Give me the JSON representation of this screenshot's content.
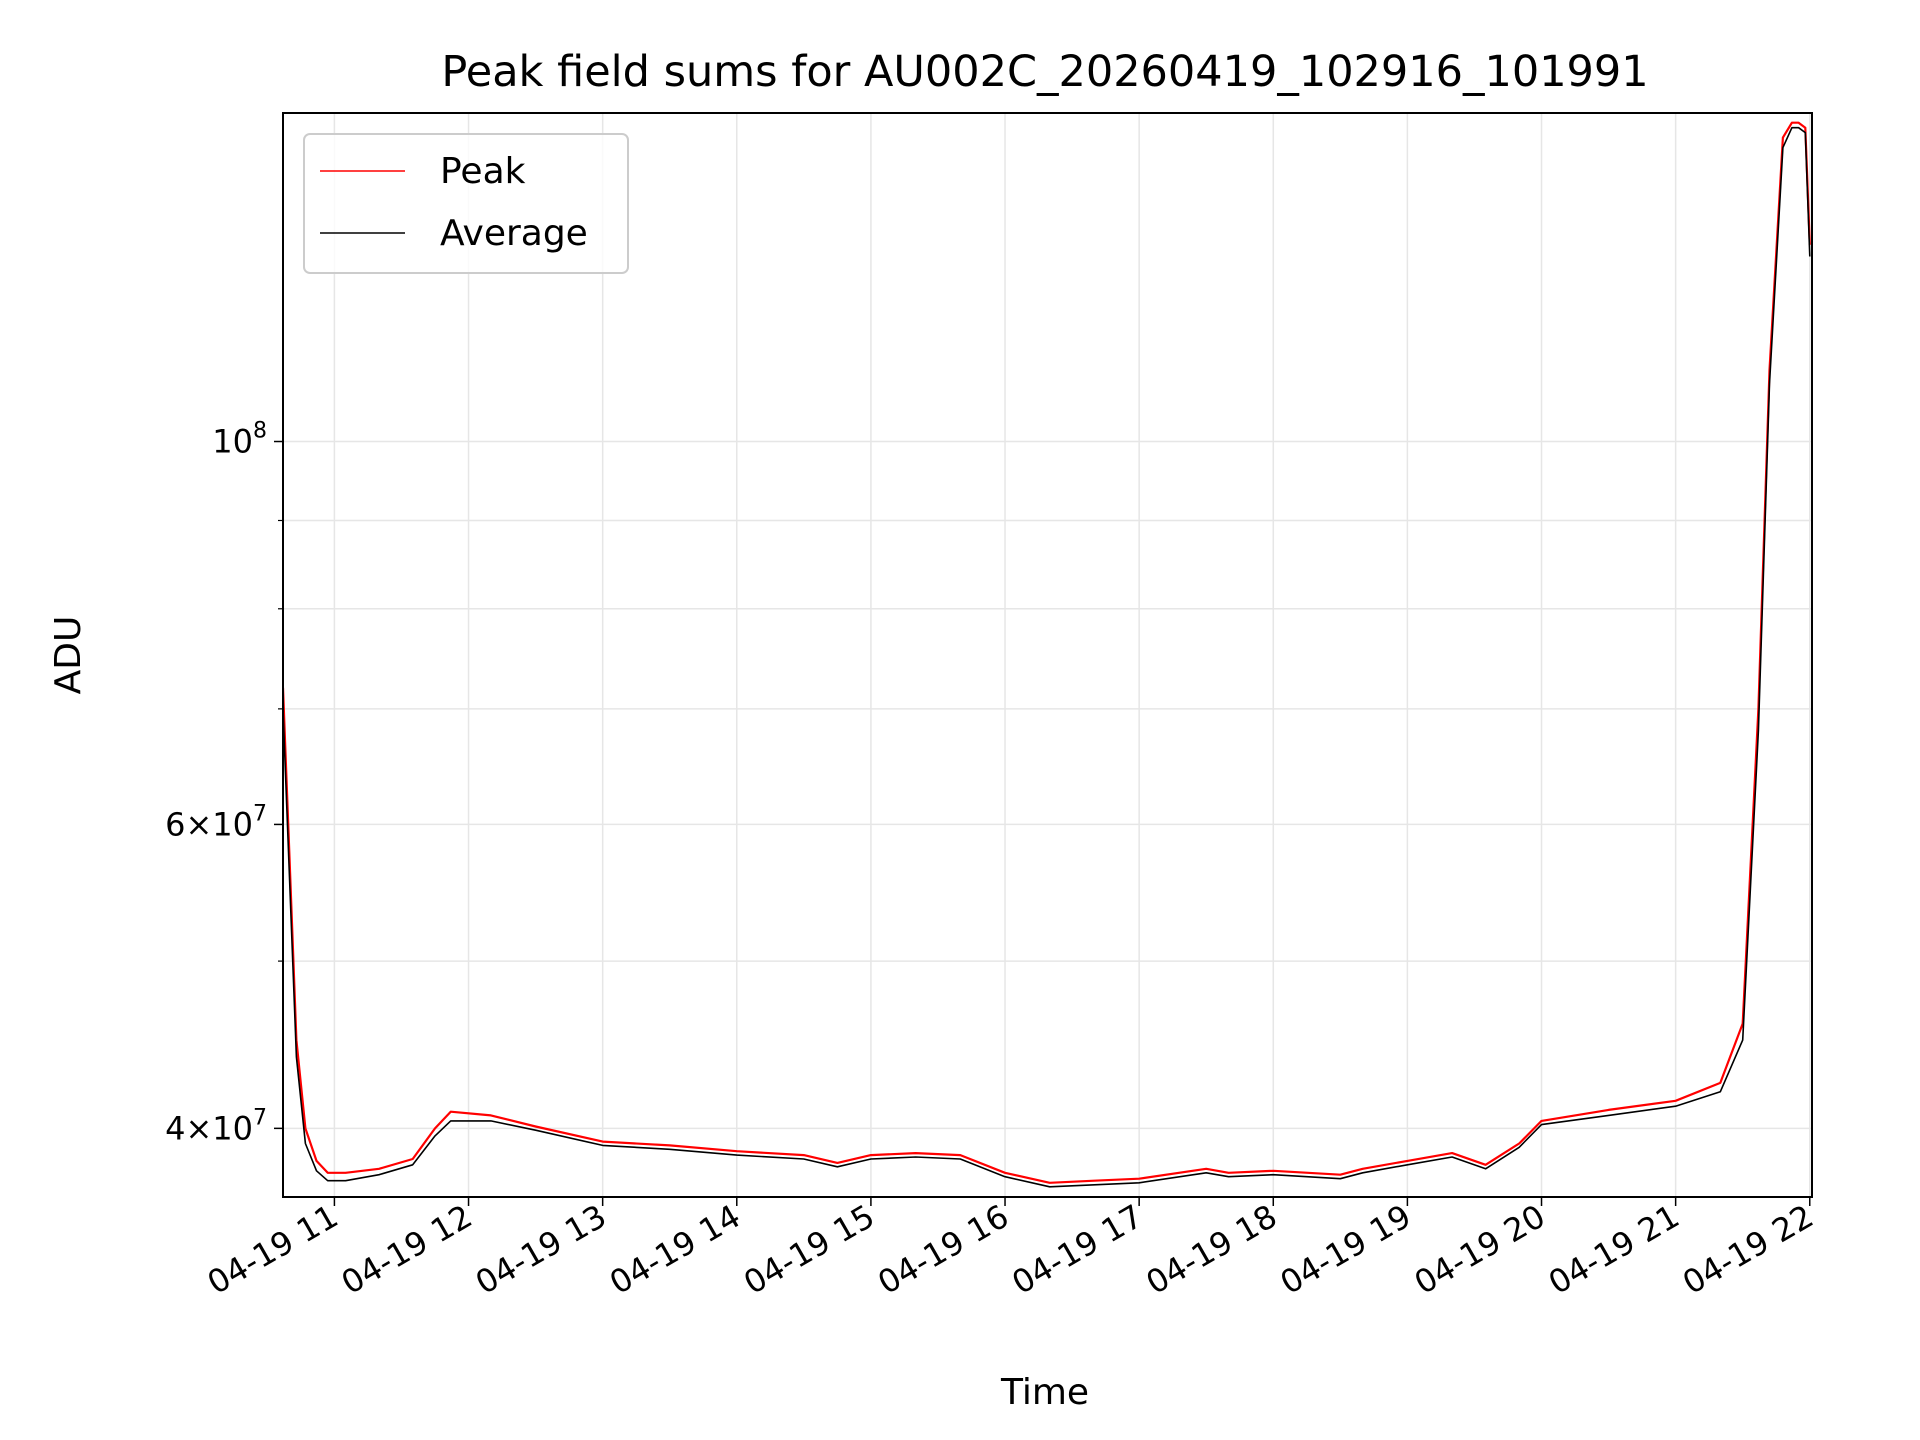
{
  "chart_data": {
    "type": "line",
    "title": "Peak field sums for AU002C_20260419_102916_101991",
    "xlabel": "Time",
    "ylabel": "ADU",
    "y_scale": "log",
    "ylim": [
      36500000,
      155000000
    ],
    "xlim": [
      "2026-04-19 10:37",
      "2026-04-19 22:01"
    ],
    "grid": true,
    "legend_location": "upper left",
    "x_ticks": [
      {
        "value": "2026-04-19 11:00",
        "label": "04-19 11"
      },
      {
        "value": "2026-04-19 12:00",
        "label": "04-19 12"
      },
      {
        "value": "2026-04-19 13:00",
        "label": "04-19 13"
      },
      {
        "value": "2026-04-19 14:00",
        "label": "04-19 14"
      },
      {
        "value": "2026-04-19 15:00",
        "label": "04-19 15"
      },
      {
        "value": "2026-04-19 16:00",
        "label": "04-19 16"
      },
      {
        "value": "2026-04-19 17:00",
        "label": "04-19 17"
      },
      {
        "value": "2026-04-19 18:00",
        "label": "04-19 18"
      },
      {
        "value": "2026-04-19 19:00",
        "label": "04-19 19"
      },
      {
        "value": "2026-04-19 20:00",
        "label": "04-19 20"
      },
      {
        "value": "2026-04-19 21:00",
        "label": "04-19 21"
      },
      {
        "value": "2026-04-19 22:00",
        "label": "04-19 22"
      }
    ],
    "y_major_ticks": [
      {
        "value": 40000000,
        "mantissa": "4",
        "exponent": "7"
      },
      {
        "value": 60000000,
        "mantissa": "6",
        "exponent": "7"
      },
      {
        "value": 100000000,
        "mantissa": "",
        "exponent": "8"
      }
    ],
    "y_minor_ticks": [
      50000000,
      70000000,
      80000000,
      90000000
    ],
    "series": [
      {
        "name": "Peak",
        "color": "#ff0000",
        "x": [
          "2026-04-19 10:37",
          "2026-04-19 10:40",
          "2026-04-19 10:43",
          "2026-04-19 10:47",
          "2026-04-19 10:52",
          "2026-04-19 10:57",
          "2026-04-19 11:05",
          "2026-04-19 11:20",
          "2026-04-19 11:35",
          "2026-04-19 11:45",
          "2026-04-19 11:52",
          "2026-04-19 12:10",
          "2026-04-19 12:30",
          "2026-04-19 13:00",
          "2026-04-19 13:30",
          "2026-04-19 14:00",
          "2026-04-19 14:30",
          "2026-04-19 14:45",
          "2026-04-19 15:00",
          "2026-04-19 15:20",
          "2026-04-19 15:40",
          "2026-04-19 16:00",
          "2026-04-19 16:20",
          "2026-04-19 16:40",
          "2026-04-19 17:00",
          "2026-04-19 17:30",
          "2026-04-19 17:40",
          "2026-04-19 18:00",
          "2026-04-19 18:30",
          "2026-04-19 18:40",
          "2026-04-19 19:00",
          "2026-04-19 19:20",
          "2026-04-19 19:35",
          "2026-04-19 19:50",
          "2026-04-19 20:00",
          "2026-04-19 20:30",
          "2026-04-19 21:00",
          "2026-04-19 21:20",
          "2026-04-19 21:30",
          "2026-04-19 21:37",
          "2026-04-19 21:42",
          "2026-04-19 21:48",
          "2026-04-19 21:52",
          "2026-04-19 21:55",
          "2026-04-19 21:58",
          "2026-04-19 22:00"
        ],
        "y": [
          72000000,
          57000000,
          45000000,
          40000000,
          38300000,
          37700000,
          37700000,
          37900000,
          38400000,
          40000000,
          40900000,
          40700000,
          40100000,
          39300000,
          39100000,
          38800000,
          38600000,
          38200000,
          38600000,
          38700000,
          38600000,
          37700000,
          37200000,
          37300000,
          37400000,
          37900000,
          37700000,
          37800000,
          37600000,
          37900000,
          38300000,
          38700000,
          38100000,
          39200000,
          40400000,
          41000000,
          41500000,
          42500000,
          46000000,
          70000000,
          110000000,
          150000000,
          153000000,
          153000000,
          152000000,
          130000000
        ]
      },
      {
        "name": "Average",
        "color": "#000000",
        "x": [
          "2026-04-19 10:37",
          "2026-04-19 10:40",
          "2026-04-19 10:43",
          "2026-04-19 10:47",
          "2026-04-19 10:52",
          "2026-04-19 10:57",
          "2026-04-19 11:05",
          "2026-04-19 11:20",
          "2026-04-19 11:35",
          "2026-04-19 11:45",
          "2026-04-19 11:52",
          "2026-04-19 12:10",
          "2026-04-19 12:30",
          "2026-04-19 13:00",
          "2026-04-19 13:30",
          "2026-04-19 14:00",
          "2026-04-19 14:30",
          "2026-04-19 14:45",
          "2026-04-19 15:00",
          "2026-04-19 15:20",
          "2026-04-19 15:40",
          "2026-04-19 16:00",
          "2026-04-19 16:20",
          "2026-04-19 16:40",
          "2026-04-19 17:00",
          "2026-04-19 17:30",
          "2026-04-19 17:40",
          "2026-04-19 18:00",
          "2026-04-19 18:30",
          "2026-04-19 18:40",
          "2026-04-19 19:00",
          "2026-04-19 19:20",
          "2026-04-19 19:35",
          "2026-04-19 19:50",
          "2026-04-19 20:00",
          "2026-04-19 20:30",
          "2026-04-19 21:00",
          "2026-04-19 21:20",
          "2026-04-19 21:30",
          "2026-04-19 21:37",
          "2026-04-19 21:42",
          "2026-04-19 21:48",
          "2026-04-19 21:52",
          "2026-04-19 21:55",
          "2026-04-19 21:58",
          "2026-04-19 22:00"
        ],
        "y": [
          70000000,
          55500000,
          44000000,
          39200000,
          37800000,
          37300000,
          37300000,
          37600000,
          38100000,
          39600000,
          40400000,
          40400000,
          39900000,
          39100000,
          38900000,
          38600000,
          38400000,
          38000000,
          38400000,
          38500000,
          38400000,
          37500000,
          37000000,
          37100000,
          37200000,
          37700000,
          37500000,
          37600000,
          37400000,
          37700000,
          38100000,
          38500000,
          37900000,
          39000000,
          40200000,
          40700000,
          41200000,
          42000000,
          45000000,
          68000000,
          108000000,
          148000000,
          152000000,
          152000000,
          151000000,
          128000000
        ]
      }
    ]
  }
}
